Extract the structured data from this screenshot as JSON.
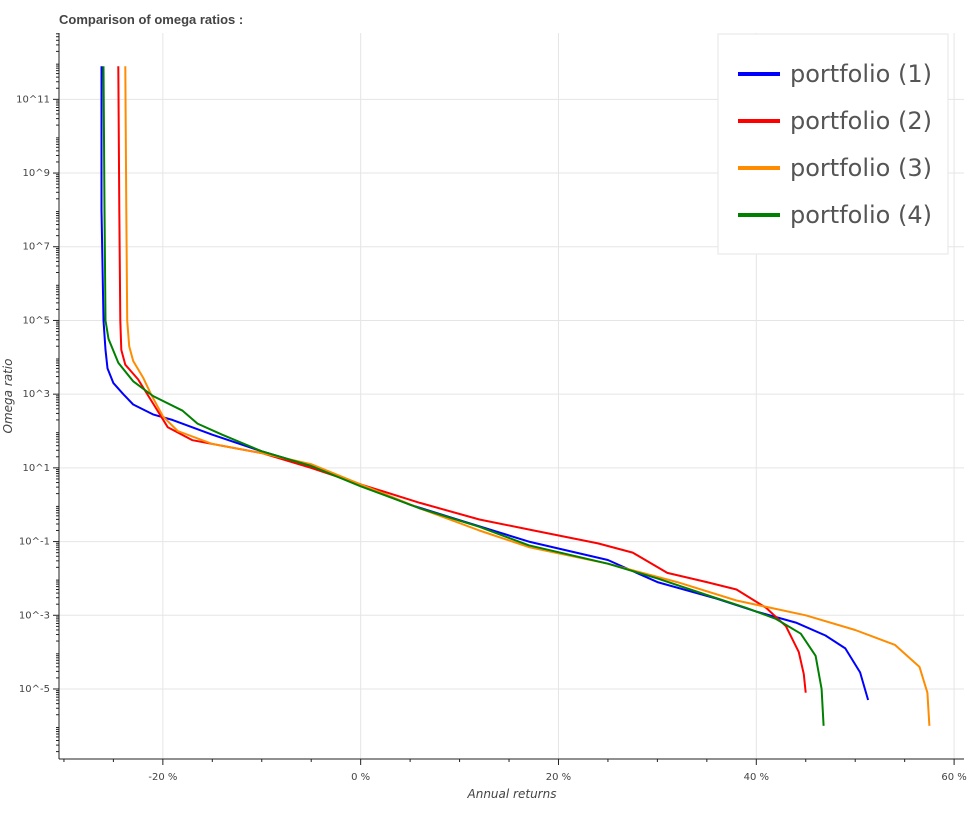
{
  "chart_data": {
    "type": "line",
    "title": "Comparison of omega ratios :",
    "xlabel": "Annual returns",
    "ylabel": "Omega ratio",
    "x_unit": "%",
    "y_scale": "log10",
    "xlim": [
      -30.5,
      61
    ],
    "ylim_log10": [
      -6.9,
      12.8
    ],
    "x_ticks": [
      -20,
      0,
      20,
      40,
      60
    ],
    "x_tick_labels": [
      "-20 %",
      "0 %",
      "20 %",
      "40 %",
      "60 %"
    ],
    "y_ticks_log10": [
      11,
      9,
      7,
      5,
      3,
      1,
      -1,
      -3,
      -5
    ],
    "y_tick_labels": [
      "10^11",
      "10^9",
      "10^7",
      "10^5",
      "10^3",
      "10^1",
      "10^-1",
      "10^-3",
      "10^-5"
    ],
    "grid": true,
    "legend_position": "top-right",
    "series": [
      {
        "name": "portfolio (1)",
        "color": "#0000ff",
        "points": [
          [
            -26.2,
            11.9
          ],
          [
            -26.2,
            8.0
          ],
          [
            -26.0,
            5.0
          ],
          [
            -25.8,
            4.2
          ],
          [
            -25.6,
            3.7
          ],
          [
            -25.0,
            3.3
          ],
          [
            -24.0,
            3.0
          ],
          [
            -23.0,
            2.72
          ],
          [
            -21.0,
            2.45
          ],
          [
            -19.0,
            2.3
          ],
          [
            -15.0,
            1.9
          ],
          [
            -10.0,
            1.45
          ],
          [
            -5.0,
            1.05
          ],
          [
            0,
            0.55
          ],
          [
            5.0,
            0.0
          ],
          [
            10.0,
            -0.42
          ],
          [
            17.0,
            -1.0
          ],
          [
            25.0,
            -1.5
          ],
          [
            30.0,
            -2.1
          ],
          [
            36.0,
            -2.55
          ],
          [
            40.0,
            -2.9
          ],
          [
            44.0,
            -3.2
          ],
          [
            47.0,
            -3.55
          ],
          [
            49.0,
            -3.9
          ],
          [
            50.5,
            -4.55
          ],
          [
            51.3,
            -5.3
          ]
        ]
      },
      {
        "name": "portfolio (2)",
        "color": "#ff0000",
        "points": [
          [
            -24.5,
            11.9
          ],
          [
            -24.4,
            8.0
          ],
          [
            -24.3,
            5.0
          ],
          [
            -24.2,
            4.2
          ],
          [
            -23.8,
            3.8
          ],
          [
            -22.5,
            3.4
          ],
          [
            -21.0,
            2.75
          ],
          [
            -19.5,
            2.1
          ],
          [
            -17.0,
            1.75
          ],
          [
            -14.0,
            1.6
          ],
          [
            -10.0,
            1.4
          ],
          [
            -5.0,
            1.0
          ],
          [
            0,
            0.55
          ],
          [
            6.0,
            0.05
          ],
          [
            12.0,
            -0.4
          ],
          [
            17.5,
            -0.7
          ],
          [
            24.0,
            -1.05
          ],
          [
            27.5,
            -1.3
          ],
          [
            31.0,
            -1.85
          ],
          [
            35.0,
            -2.1
          ],
          [
            38.0,
            -2.3
          ],
          [
            41.0,
            -2.8
          ],
          [
            43.0,
            -3.3
          ],
          [
            44.3,
            -4.0
          ],
          [
            44.8,
            -4.6
          ],
          [
            45.0,
            -5.1
          ]
        ]
      },
      {
        "name": "portfolio (3)",
        "color": "#ff8c00",
        "points": [
          [
            -23.8,
            11.9
          ],
          [
            -23.7,
            8.0
          ],
          [
            -23.6,
            5.0
          ],
          [
            -23.4,
            4.3
          ],
          [
            -23.0,
            3.9
          ],
          [
            -22.0,
            3.45
          ],
          [
            -21.2,
            3.0
          ],
          [
            -20.0,
            2.4
          ],
          [
            -18.5,
            2.0
          ],
          [
            -15.0,
            1.65
          ],
          [
            -10.0,
            1.4
          ],
          [
            -5.0,
            1.1
          ],
          [
            0,
            0.55
          ],
          [
            6.0,
            -0.1
          ],
          [
            12.0,
            -0.7
          ],
          [
            17.0,
            -1.15
          ],
          [
            25.0,
            -1.6
          ],
          [
            32.0,
            -2.1
          ],
          [
            38.0,
            -2.6
          ],
          [
            45.0,
            -3.0
          ],
          [
            50.0,
            -3.4
          ],
          [
            54.0,
            -3.8
          ],
          [
            56.5,
            -4.4
          ],
          [
            57.3,
            -5.1
          ],
          [
            57.5,
            -6.0
          ]
        ]
      },
      {
        "name": "portfolio (4)",
        "color": "#008000",
        "points": [
          [
            -26.0,
            11.9
          ],
          [
            -25.9,
            8.0
          ],
          [
            -25.8,
            5.0
          ],
          [
            -25.5,
            4.5
          ],
          [
            -24.5,
            3.85
          ],
          [
            -23.0,
            3.35
          ],
          [
            -21.0,
            2.95
          ],
          [
            -18.0,
            2.55
          ],
          [
            -16.5,
            2.2
          ],
          [
            -14.0,
            1.9
          ],
          [
            -10.0,
            1.45
          ],
          [
            -5.0,
            1.05
          ],
          [
            0,
            0.5
          ],
          [
            6.0,
            -0.1
          ],
          [
            12.0,
            -0.6
          ],
          [
            17.0,
            -1.1
          ],
          [
            25.0,
            -1.6
          ],
          [
            30.0,
            -2.0
          ],
          [
            35.0,
            -2.45
          ],
          [
            39.0,
            -2.8
          ],
          [
            42.0,
            -3.1
          ],
          [
            44.5,
            -3.5
          ],
          [
            46.0,
            -4.1
          ],
          [
            46.6,
            -5.0
          ],
          [
            46.8,
            -6.0
          ]
        ]
      }
    ]
  }
}
